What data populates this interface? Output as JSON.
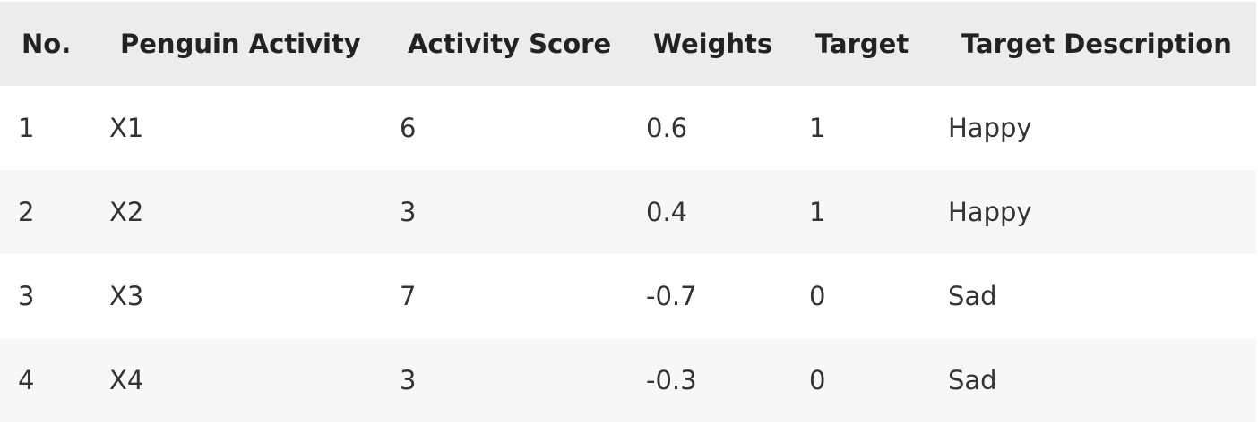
{
  "table": {
    "headers": [
      "No.",
      "Penguin Activity",
      "Activity Score",
      "Weights",
      "Target",
      "Target Description"
    ],
    "rows": [
      [
        "1",
        "X1",
        "6",
        "0.6",
        "1",
        "Happy"
      ],
      [
        "2",
        "X2",
        "3",
        "0.4",
        "1",
        "Happy"
      ],
      [
        "3",
        "X3",
        "7",
        "-0.7",
        "0",
        "Sad"
      ],
      [
        "4",
        "X4",
        "3",
        "-0.3",
        "0",
        "Sad"
      ]
    ]
  }
}
